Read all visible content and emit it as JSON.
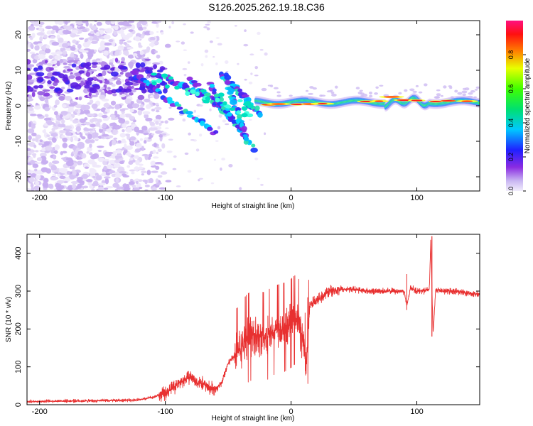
{
  "title": "S126.2025.262.19.18.C36",
  "colors": {
    "snr_line": "#e83030",
    "ridge": "#ff1a1a"
  },
  "chart_data": [
    {
      "id": "spectrogram",
      "type": "heatmap",
      "title": "",
      "xlabel": "Height of straight line (km)",
      "ylabel": "Frequency (Hz)",
      "xlim": [
        -210,
        150
      ],
      "ylim": [
        -24,
        24
      ],
      "xticks": [
        -200,
        -100,
        0,
        100
      ],
      "yticks": [
        -20,
        -10,
        0,
        10,
        20
      ],
      "colorbar": {
        "label": "Normalized spectral amplitude",
        "range": [
          0,
          1
        ],
        "ticks": [
          0.0,
          0.2,
          0.4,
          0.6,
          0.8
        ],
        "colormap": "rainbow (violet→blue→cyan→green→yellow→red→magenta)"
      },
      "features": [
        {
          "name": "diffuse scattered noise",
          "x_range": [
            -210,
            -110
          ],
          "y_range": [
            -24,
            24
          ],
          "amplitude": "low"
        },
        {
          "name": "descending dispersive streaks",
          "x_range": [
            -125,
            -30
          ],
          "y_start": 9,
          "y_end": -12,
          "amplitude": "medium"
        },
        {
          "name": "narrow ridge near 1 Hz",
          "x_range": [
            -25,
            150
          ],
          "y": 1,
          "amplitude": "high"
        }
      ]
    },
    {
      "id": "snr",
      "type": "line",
      "title": "",
      "xlabel": "Height of straight line (km)",
      "ylabel": "SNR (10 * v/v)",
      "xlim": [
        -210,
        150
      ],
      "ylim": [
        0,
        450
      ],
      "xticks": [
        -200,
        -100,
        0,
        100
      ],
      "yticks": [
        0,
        100,
        200,
        300,
        400
      ],
      "series": [
        {
          "name": "SNR",
          "x": [
            -210,
            -200,
            -180,
            -160,
            -140,
            -120,
            -110,
            -100,
            -90,
            -80,
            -75,
            -70,
            -65,
            -60,
            -55,
            -50,
            -45,
            -40,
            -35,
            -30,
            -25,
            -20,
            -15,
            -10,
            -5,
            0,
            5,
            10,
            12,
            15,
            20,
            25,
            30,
            40,
            50,
            60,
            70,
            80,
            90,
            92,
            95,
            100,
            105,
            110,
            111,
            113,
            115,
            120,
            130,
            140,
            150
          ],
          "values": [
            8,
            9,
            10,
            10,
            11,
            13,
            20,
            30,
            55,
            75,
            60,
            55,
            45,
            40,
            60,
            110,
            130,
            150,
            175,
            185,
            180,
            180,
            195,
            200,
            205,
            215,
            230,
            160,
            100,
            265,
            275,
            285,
            300,
            305,
            305,
            300,
            300,
            300,
            300,
            260,
            310,
            300,
            300,
            305,
            430,
            190,
            305,
            300,
            300,
            295,
            290
          ]
        }
      ],
      "annotations": [
        {
          "x": 112,
          "y": 445,
          "text": ""
        }
      ]
    }
  ]
}
